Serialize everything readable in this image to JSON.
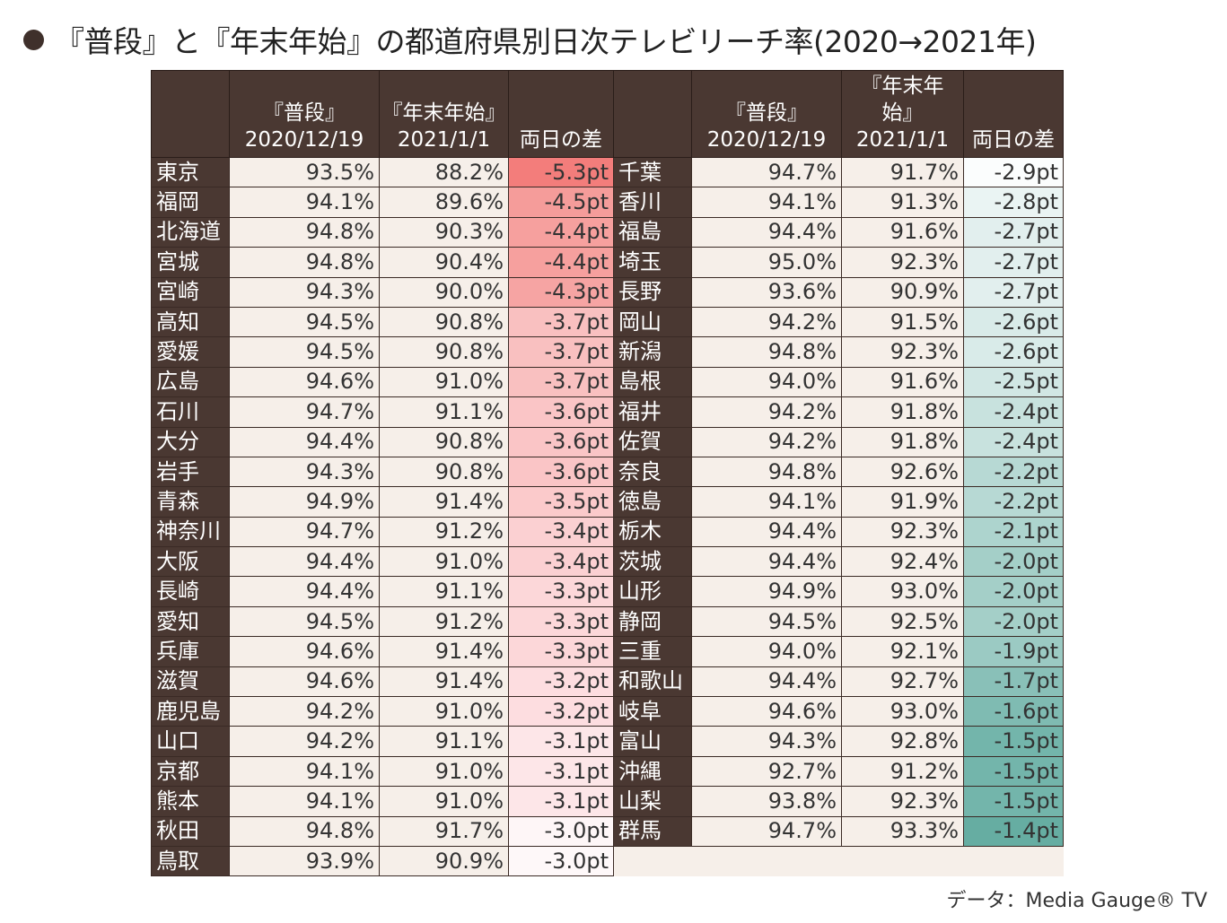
{
  "title": "『普段』と『年末年始』の都道府県別日次テレビリーチ率(2020→2021年)",
  "source": "データ：Media Gauge® TV",
  "headers": {
    "normal_l1": "『普段』",
    "normal_l2": "2020/12/19",
    "newyear_l1": "『年末年始』",
    "newyear_l2": "2021/1/1",
    "diff": "両日の差"
  },
  "colors": {
    "header_bg": "#4a3832",
    "cell_bg": "#f6efe9",
    "neg_strong": "#f27a7a",
    "pos_strong": "#5aaa9c"
  },
  "left_rows": [
    {
      "pref": "東京",
      "normal": "93.5%",
      "newyear": "88.2%",
      "diff": "-5.3pt",
      "color": "#f37d7b"
    },
    {
      "pref": "福岡",
      "normal": "94.1%",
      "newyear": "89.6%",
      "diff": "-4.5pt",
      "color": "#f59c9a"
    },
    {
      "pref": "北海道",
      "normal": "94.8%",
      "newyear": "90.3%",
      "diff": "-4.4pt",
      "color": "#f6a09e"
    },
    {
      "pref": "宮城",
      "normal": "94.8%",
      "newyear": "90.4%",
      "diff": "-4.4pt",
      "color": "#f6a09e"
    },
    {
      "pref": "宮崎",
      "normal": "94.3%",
      "newyear": "90.0%",
      "diff": "-4.3pt",
      "color": "#f6a4a3"
    },
    {
      "pref": "高知",
      "normal": "94.5%",
      "newyear": "90.8%",
      "diff": "-3.7pt",
      "color": "#f9c0c0"
    },
    {
      "pref": "愛媛",
      "normal": "94.5%",
      "newyear": "90.8%",
      "diff": "-3.7pt",
      "color": "#f9c0c0"
    },
    {
      "pref": "広島",
      "normal": "94.6%",
      "newyear": "91.0%",
      "diff": "-3.7pt",
      "color": "#f9c0c0"
    },
    {
      "pref": "石川",
      "normal": "94.7%",
      "newyear": "91.1%",
      "diff": "-3.6pt",
      "color": "#fac5c6"
    },
    {
      "pref": "大分",
      "normal": "94.4%",
      "newyear": "90.8%",
      "diff": "-3.6pt",
      "color": "#fac5c6"
    },
    {
      "pref": "岩手",
      "normal": "94.3%",
      "newyear": "90.8%",
      "diff": "-3.6pt",
      "color": "#fac5c6"
    },
    {
      "pref": "青森",
      "normal": "94.9%",
      "newyear": "91.4%",
      "diff": "-3.5pt",
      "color": "#fbcacb"
    },
    {
      "pref": "神奈川",
      "normal": "94.7%",
      "newyear": "91.2%",
      "diff": "-3.4pt",
      "color": "#fbd0d2"
    },
    {
      "pref": "大阪",
      "normal": "94.4%",
      "newyear": "91.0%",
      "diff": "-3.4pt",
      "color": "#fbd0d2"
    },
    {
      "pref": "長崎",
      "normal": "94.4%",
      "newyear": "91.1%",
      "diff": "-3.3pt",
      "color": "#fcd7d9"
    },
    {
      "pref": "愛知",
      "normal": "94.5%",
      "newyear": "91.2%",
      "diff": "-3.3pt",
      "color": "#fcd7d9"
    },
    {
      "pref": "兵庫",
      "normal": "94.6%",
      "newyear": "91.4%",
      "diff": "-3.3pt",
      "color": "#fcd7d9"
    },
    {
      "pref": "滋賀",
      "normal": "94.6%",
      "newyear": "91.4%",
      "diff": "-3.2pt",
      "color": "#fddde0"
    },
    {
      "pref": "鹿児島",
      "normal": "94.2%",
      "newyear": "91.0%",
      "diff": "-3.2pt",
      "color": "#fddde0"
    },
    {
      "pref": "山口",
      "normal": "94.2%",
      "newyear": "91.1%",
      "diff": "-3.1pt",
      "color": "#fde6e8"
    },
    {
      "pref": "京都",
      "normal": "94.1%",
      "newyear": "91.0%",
      "diff": "-3.1pt",
      "color": "#fde6e8"
    },
    {
      "pref": "熊本",
      "normal": "94.1%",
      "newyear": "91.0%",
      "diff": "-3.1pt",
      "color": "#fde6e8"
    },
    {
      "pref": "秋田",
      "normal": "94.8%",
      "newyear": "91.7%",
      "diff": "-3.0pt",
      "color": "#fef6f7"
    },
    {
      "pref": "鳥取",
      "normal": "93.9%",
      "newyear": "90.9%",
      "diff": "-3.0pt",
      "color": "#fef8f9"
    }
  ],
  "right_rows": [
    {
      "pref": "千葉",
      "normal": "94.7%",
      "newyear": "91.7%",
      "diff": "-2.9pt",
      "color": "#fbfdfd"
    },
    {
      "pref": "香川",
      "normal": "94.1%",
      "newyear": "91.3%",
      "diff": "-2.8pt",
      "color": "#eaf4f3"
    },
    {
      "pref": "福島",
      "normal": "94.4%",
      "newyear": "91.6%",
      "diff": "-2.7pt",
      "color": "#e2efee"
    },
    {
      "pref": "埼玉",
      "normal": "95.0%",
      "newyear": "92.3%",
      "diff": "-2.7pt",
      "color": "#e2efee"
    },
    {
      "pref": "長野",
      "normal": "93.6%",
      "newyear": "90.9%",
      "diff": "-2.7pt",
      "color": "#e2efee"
    },
    {
      "pref": "岡山",
      "normal": "94.2%",
      "newyear": "91.5%",
      "diff": "-2.6pt",
      "color": "#d9ebe9"
    },
    {
      "pref": "新潟",
      "normal": "94.8%",
      "newyear": "92.3%",
      "diff": "-2.6pt",
      "color": "#d9ebe9"
    },
    {
      "pref": "島根",
      "normal": "94.0%",
      "newyear": "91.6%",
      "diff": "-2.5pt",
      "color": "#d1e7e4"
    },
    {
      "pref": "福井",
      "normal": "94.2%",
      "newyear": "91.8%",
      "diff": "-2.4pt",
      "color": "#c8e2de"
    },
    {
      "pref": "佐賀",
      "normal": "94.2%",
      "newyear": "91.8%",
      "diff": "-2.4pt",
      "color": "#c8e2de"
    },
    {
      "pref": "奈良",
      "normal": "94.8%",
      "newyear": "92.6%",
      "diff": "-2.2pt",
      "color": "#b7d9d4"
    },
    {
      "pref": "徳島",
      "normal": "94.1%",
      "newyear": "91.9%",
      "diff": "-2.2pt",
      "color": "#b7d9d4"
    },
    {
      "pref": "栃木",
      "normal": "94.4%",
      "newyear": "92.3%",
      "diff": "-2.1pt",
      "color": "#add4ce"
    },
    {
      "pref": "茨城",
      "normal": "94.4%",
      "newyear": "92.4%",
      "diff": "-2.0pt",
      "color": "#a4cfc8"
    },
    {
      "pref": "山形",
      "normal": "94.9%",
      "newyear": "93.0%",
      "diff": "-2.0pt",
      "color": "#a4cfc8"
    },
    {
      "pref": "静岡",
      "normal": "94.5%",
      "newyear": "92.5%",
      "diff": "-2.0pt",
      "color": "#a4cfc8"
    },
    {
      "pref": "三重",
      "normal": "94.0%",
      "newyear": "92.1%",
      "diff": "-1.9pt",
      "color": "#9bcac3"
    },
    {
      "pref": "和歌山",
      "normal": "94.4%",
      "newyear": "92.7%",
      "diff": "-1.7pt",
      "color": "#89c0b8"
    },
    {
      "pref": "岐阜",
      "normal": "94.6%",
      "newyear": "93.0%",
      "diff": "-1.6pt",
      "color": "#7fbbb2"
    },
    {
      "pref": "富山",
      "normal": "94.3%",
      "newyear": "92.8%",
      "diff": "-1.5pt",
      "color": "#73b5ab"
    },
    {
      "pref": "沖縄",
      "normal": "92.7%",
      "newyear": "91.2%",
      "diff": "-1.5pt",
      "color": "#73b5ab"
    },
    {
      "pref": "山梨",
      "normal": "93.8%",
      "newyear": "92.3%",
      "diff": "-1.5pt",
      "color": "#73b5ab"
    },
    {
      "pref": "群馬",
      "normal": "94.7%",
      "newyear": "93.3%",
      "diff": "-1.4pt",
      "color": "#66ada2"
    }
  ]
}
